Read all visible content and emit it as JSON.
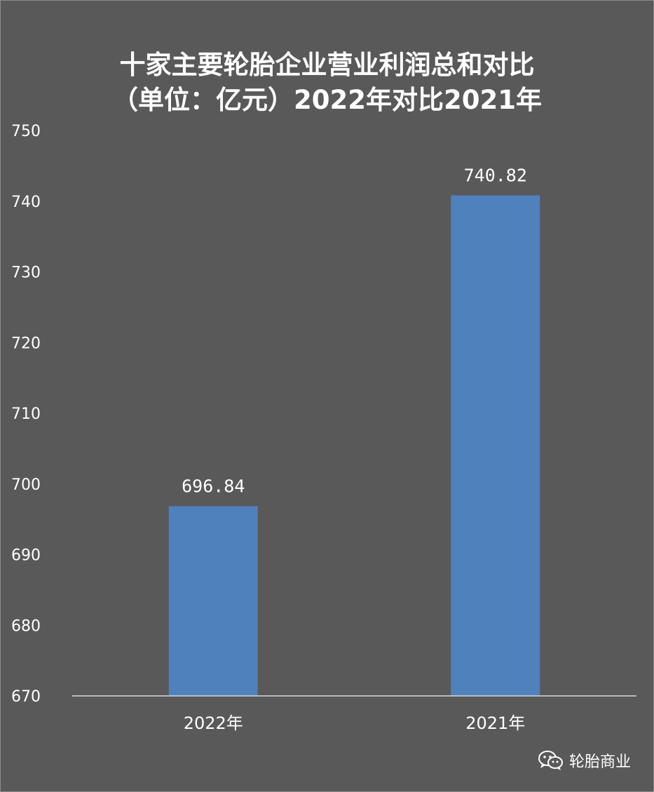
{
  "chart_data": {
    "type": "bar",
    "title": "十家主要轮胎企业营业利润总和对比",
    "subtitle": "（单位：亿元）2022年对比2021年",
    "categories": [
      "2022年",
      "2021年"
    ],
    "values": [
      696.84,
      740.82
    ],
    "data_labels": [
      "696.84",
      "740.82"
    ],
    "ylim": [
      670,
      750
    ],
    "yticks": [
      670,
      680,
      690,
      700,
      710,
      720,
      730,
      740,
      750
    ],
    "bar_color": "#4f81bd",
    "background_color": "#595959",
    "text_color": "#ffffff",
    "grid": false,
    "legend": "none"
  },
  "watermark": {
    "icon": "wechat-icon",
    "text": "轮胎商业"
  }
}
